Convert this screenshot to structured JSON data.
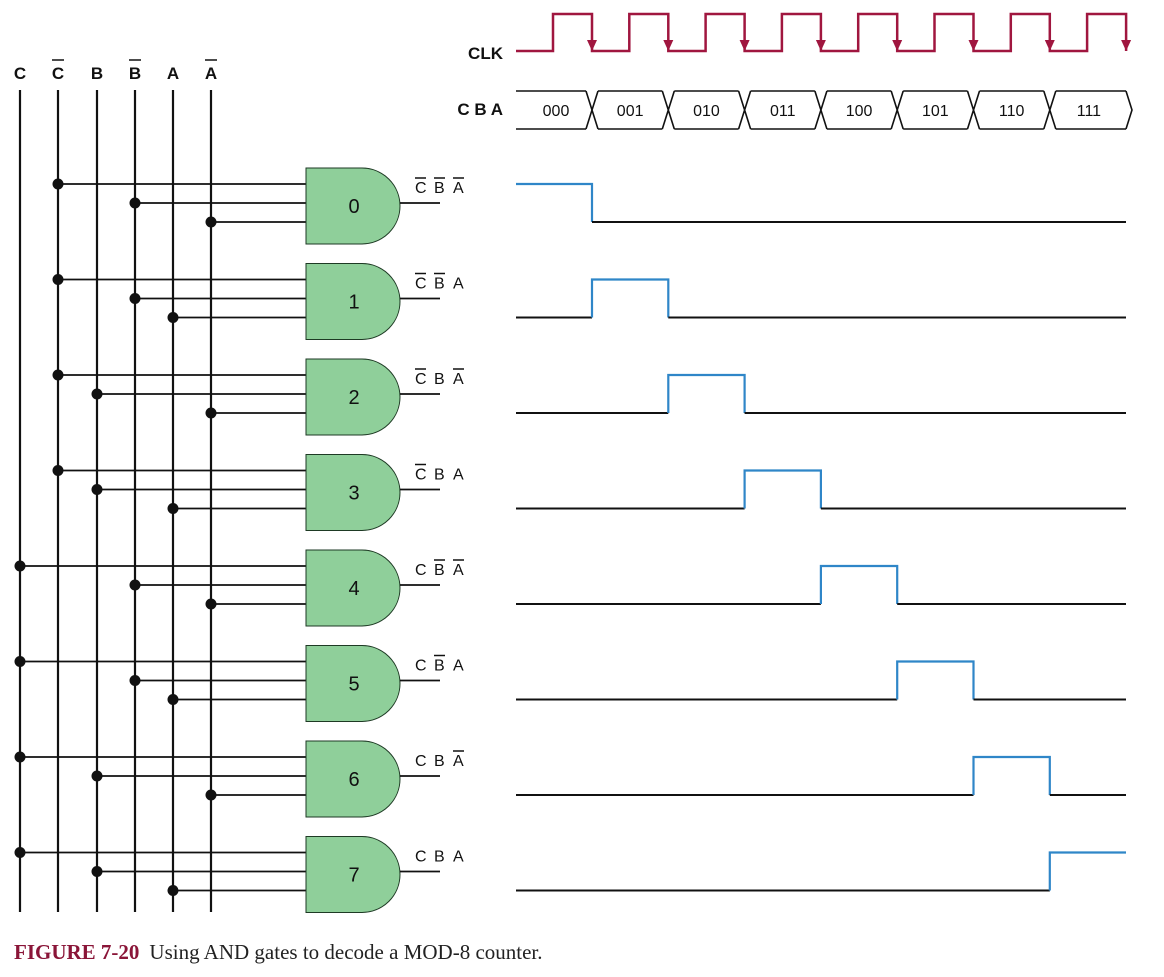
{
  "bus_lines": [
    {
      "letter": "C",
      "inverted": false
    },
    {
      "letter": "C",
      "inverted": true
    },
    {
      "letter": "B",
      "inverted": false
    },
    {
      "letter": "B",
      "inverted": true
    },
    {
      "letter": "A",
      "inverted": false
    },
    {
      "letter": "A",
      "inverted": true
    }
  ],
  "clock_label": "CLK",
  "state_label": "C B A",
  "states": [
    "000",
    "001",
    "010",
    "011",
    "100",
    "101",
    "110",
    "111"
  ],
  "gates": [
    {
      "label": "0",
      "terms": [
        {
          "letter": "C",
          "inverted": true
        },
        {
          "letter": "B",
          "inverted": true
        },
        {
          "letter": "A",
          "inverted": true
        }
      ]
    },
    {
      "label": "1",
      "terms": [
        {
          "letter": "C",
          "inverted": true
        },
        {
          "letter": "B",
          "inverted": true
        },
        {
          "letter": "A",
          "inverted": false
        }
      ]
    },
    {
      "label": "2",
      "terms": [
        {
          "letter": "C",
          "inverted": true
        },
        {
          "letter": "B",
          "inverted": false
        },
        {
          "letter": "A",
          "inverted": true
        }
      ]
    },
    {
      "label": "3",
      "terms": [
        {
          "letter": "C",
          "inverted": true
        },
        {
          "letter": "B",
          "inverted": false
        },
        {
          "letter": "A",
          "inverted": false
        }
      ]
    },
    {
      "label": "4",
      "terms": [
        {
          "letter": "C",
          "inverted": false
        },
        {
          "letter": "B",
          "inverted": true
        },
        {
          "letter": "A",
          "inverted": true
        }
      ]
    },
    {
      "label": "5",
      "terms": [
        {
          "letter": "C",
          "inverted": false
        },
        {
          "letter": "B",
          "inverted": true
        },
        {
          "letter": "A",
          "inverted": false
        }
      ]
    },
    {
      "label": "6",
      "terms": [
        {
          "letter": "C",
          "inverted": false
        },
        {
          "letter": "B",
          "inverted": false
        },
        {
          "letter": "A",
          "inverted": true
        }
      ]
    },
    {
      "label": "7",
      "terms": [
        {
          "letter": "C",
          "inverted": false
        },
        {
          "letter": "B",
          "inverted": false
        },
        {
          "letter": "A",
          "inverted": false
        }
      ]
    }
  ],
  "colors": {
    "gate_fill": "#8fcf9a",
    "clock": "#a0163f",
    "pulse": "#2f86c8",
    "wire": "#111111",
    "caption_accent": "#8a1538"
  },
  "caption": {
    "number": "FIGURE 7-20",
    "text": "Using AND gates to decode a MOD-8 counter."
  }
}
